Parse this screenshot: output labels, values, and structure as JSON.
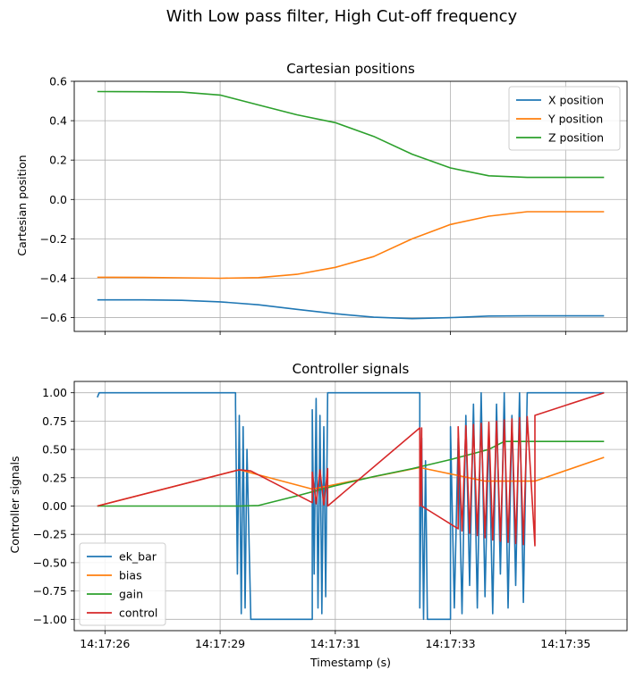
{
  "suptitle": "With Low pass filter, High Cut-off frequency",
  "colors": {
    "blue": "#1f77b4",
    "orange": "#ff7f0e",
    "green": "#2ca02c",
    "red": "#d62728",
    "grid": "#b0b0b0"
  },
  "shared_x": {
    "xlabel": "Timestamp (s)",
    "ticks": [
      {
        "t": 0,
        "label": "14:17:26"
      },
      {
        "t": 3,
        "label": "14:17:29"
      },
      {
        "t": 6,
        "label": "14:17:31"
      },
      {
        "t": 9,
        "label": "14:17:33"
      },
      {
        "t": 12,
        "label": "14:17:35"
      }
    ],
    "xlim": [
      -0.8,
      13.6
    ]
  },
  "chart_data": [
    {
      "type": "line",
      "title": "Cartesian positions",
      "ylabel": "Cartesian position",
      "ylim": [
        -0.67,
        0.6
      ],
      "yticks": [
        "0.6",
        "0.4",
        "0.2",
        "0.0",
        "−0.2",
        "−0.4",
        "−0.6"
      ],
      "ytick_values": [
        0.6,
        0.4,
        0.2,
        0.0,
        -0.2,
        -0.4,
        -0.6
      ],
      "grid": true,
      "legend": "upper-right",
      "series": [
        {
          "name": "X position",
          "color": "#1f77b4",
          "x": [
            -0.2,
            1,
            2,
            3,
            4,
            5,
            6,
            7,
            8,
            9,
            10,
            11,
            12,
            13
          ],
          "y": [
            -0.51,
            -0.51,
            -0.512,
            -0.52,
            -0.535,
            -0.558,
            -0.58,
            -0.598,
            -0.605,
            -0.6,
            -0.592,
            -0.591,
            -0.591,
            -0.591
          ]
        },
        {
          "name": "Y position",
          "color": "#ff7f0e",
          "x": [
            -0.2,
            1,
            2,
            3,
            4,
            5,
            6,
            7,
            8,
            9,
            10,
            11,
            12,
            13
          ],
          "y": [
            -0.395,
            -0.396,
            -0.398,
            -0.4,
            -0.397,
            -0.38,
            -0.345,
            -0.29,
            -0.2,
            -0.127,
            -0.085,
            -0.062,
            -0.062,
            -0.062
          ]
        },
        {
          "name": "Z position",
          "color": "#2ca02c",
          "x": [
            -0.2,
            1,
            2,
            3,
            4,
            5,
            6,
            7,
            8,
            9,
            10,
            11,
            12,
            13
          ],
          "y": [
            0.548,
            0.547,
            0.545,
            0.53,
            0.48,
            0.43,
            0.39,
            0.32,
            0.23,
            0.16,
            0.12,
            0.112,
            0.112,
            0.112
          ]
        }
      ]
    },
    {
      "type": "line",
      "title": "Controller signals",
      "ylabel": "Controller signals",
      "ylim": [
        -1.1,
        1.1
      ],
      "yticks": [
        "1.00",
        "0.75",
        "0.50",
        "0.25",
        "0.00",
        "−0.25",
        "−0.50",
        "−0.75",
        "−1.00"
      ],
      "ytick_values": [
        1.0,
        0.75,
        0.5,
        0.25,
        0.0,
        -0.25,
        -0.5,
        -0.75,
        -1.0
      ],
      "grid": true,
      "legend": "lower-left",
      "series": [
        {
          "name": "ek_bar",
          "color": "#1f77b4",
          "x": [
            -0.2,
            -0.15,
            3.4,
            3.4,
            3.45,
            3.5,
            3.55,
            3.6,
            3.65,
            3.7,
            3.8,
            5.4,
            5.4,
            5.45,
            5.5,
            5.55,
            5.6,
            5.65,
            5.7,
            5.75,
            5.8,
            5.9,
            8.2,
            8.2,
            8.25,
            8.3,
            8.35,
            8.4,
            9.0,
            9.0,
            9.1,
            9.2,
            9.3,
            9.4,
            9.5,
            9.6,
            9.7,
            9.8,
            9.9,
            10.0,
            10.1,
            10.2,
            10.3,
            10.4,
            10.5,
            10.6,
            10.7,
            10.8,
            10.9,
            11.0,
            11.2,
            13.0
          ],
          "y": [
            0.96,
            1.0,
            1.0,
            0.9,
            -0.6,
            0.8,
            -0.95,
            0.7,
            -0.9,
            0.5,
            -1.0,
            -1.0,
            0.85,
            -0.6,
            0.95,
            -0.9,
            0.8,
            -0.95,
            0.7,
            -0.8,
            1.0,
            1.0,
            1.0,
            -0.9,
            0.6,
            -1.0,
            0.4,
            -1.0,
            -1.0,
            0.7,
            -0.9,
            0.6,
            -0.95,
            0.8,
            -0.7,
            0.9,
            -0.9,
            1.0,
            -0.8,
            0.7,
            -0.95,
            0.9,
            -0.6,
            1.0,
            -0.9,
            0.8,
            -0.7,
            1.0,
            -0.85,
            1.0,
            1.0,
            1.0
          ]
        },
        {
          "name": "bias",
          "color": "#ff7f0e",
          "x": [
            -0.2,
            3.5,
            5.4,
            8.2,
            9.9,
            11.2,
            13.0
          ],
          "y": [
            0.0,
            0.32,
            0.15,
            0.34,
            0.22,
            0.22,
            0.43
          ]
        },
        {
          "name": "gain",
          "color": "#2ca02c",
          "x": [
            -0.2,
            3.5,
            4.0,
            5.0,
            6.0,
            7.0,
            8.0,
            9.0,
            10.0,
            10.4,
            11.0,
            12.0,
            13.0
          ],
          "y": [
            0.0,
            0.0,
            0.005,
            0.09,
            0.18,
            0.26,
            0.33,
            0.41,
            0.5,
            0.57,
            0.57,
            0.57,
            0.57
          ]
        },
        {
          "name": "control",
          "color": "#d62728",
          "x": [
            -0.2,
            3.5,
            3.8,
            5.4,
            5.4,
            5.5,
            5.6,
            5.7,
            5.8,
            5.8,
            8.2,
            8.2,
            8.25,
            8.25,
            9.2,
            9.2,
            9.3,
            9.4,
            9.5,
            9.6,
            9.7,
            9.8,
            9.9,
            10.0,
            10.1,
            10.2,
            10.3,
            10.4,
            10.5,
            10.6,
            10.7,
            10.8,
            10.9,
            11.0,
            11.2,
            11.2,
            13.0
          ],
          "y": [
            0.0,
            0.32,
            0.31,
            0.03,
            0.3,
            0.02,
            0.32,
            0.01,
            0.33,
            0.0,
            0.69,
            0.0,
            0.69,
            0.0,
            -0.2,
            0.7,
            -0.22,
            0.71,
            -0.24,
            0.72,
            -0.26,
            0.73,
            -0.28,
            0.74,
            -0.3,
            0.75,
            -0.31,
            0.76,
            -0.32,
            0.77,
            -0.33,
            0.78,
            -0.34,
            0.79,
            -0.35,
            0.8,
            1.0
          ]
        }
      ]
    }
  ]
}
